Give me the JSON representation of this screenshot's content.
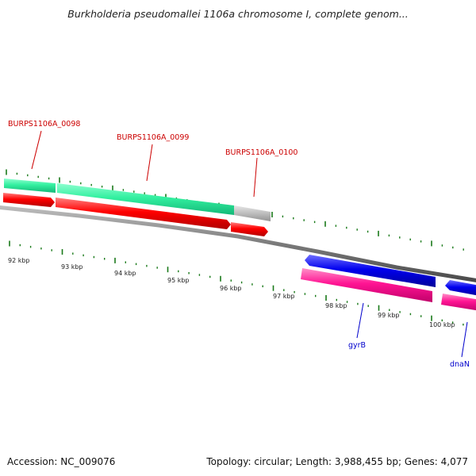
{
  "header": {
    "title": "Burkholderia pseudomallei 1106a chromosome I, complete genom..."
  },
  "footer": {
    "accession": "Accession: NC_009076",
    "summary": "Topology: circular; Length: 3,988,455 bp; Genes: 4,077"
  },
  "ruler": {
    "labels": [
      "92 kbp",
      "93 kbp",
      "94 kbp",
      "95 kbp",
      "96 kbp",
      "97 kbp",
      "98 kbp",
      "99 kbp",
      "100 kbp"
    ]
  },
  "features": {
    "top_genes": [
      {
        "label": "BURPS1106A_0098",
        "color": "#cc0000"
      },
      {
        "label": "BURPS1106A_0099",
        "color": "#cc0000"
      },
      {
        "label": "BURPS1106A_0100",
        "color": "#cc0000"
      }
    ],
    "bottom_genes": [
      {
        "label": "gyrB",
        "color": "#0000cc"
      },
      {
        "label": "dnaN",
        "color": "#0000cc"
      }
    ]
  },
  "colors": {
    "backbone": "#808080",
    "tick": "#1a7a1a",
    "cds_red": "#ff0000",
    "cds_blue": "#0000ee",
    "gene_green": "#33f0a0",
    "gene_magenta": "#ff1493",
    "gene_grey": "#bdbdbd"
  }
}
